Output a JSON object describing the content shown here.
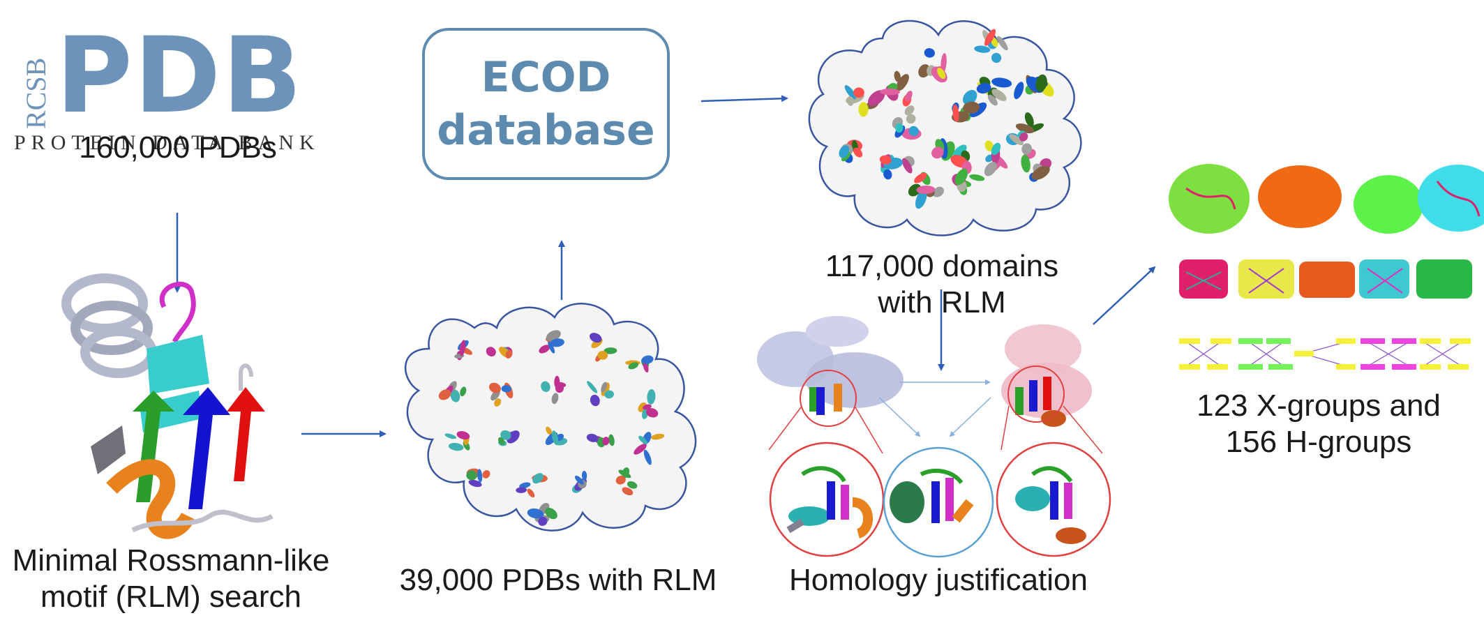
{
  "logo": {
    "rcsb": "RCSB",
    "pdb": "PDB",
    "subtitle": "PROTEIN DATA BANK"
  },
  "nodes": {
    "pdb_count": "160,000 PDBs",
    "ecod_line1": "ECOD",
    "ecod_line2": "database",
    "domains_line1": "117,000 domains",
    "domains_line2": "with RLM",
    "rlm_search_line1": "Minimal Rossmann-like",
    "rlm_search_line2": "motif (RLM) search",
    "pdbs_rlm": "39,000 PDBs with RLM",
    "homology": "Homology justification",
    "groups_line1": "123 X-groups and",
    "groups_line2": "156 H-groups"
  },
  "colors": {
    "arrow": "#2e5fb5",
    "ecod_box": "#5d8bb0",
    "logo": "#6d93ba",
    "cloud_border": "#3a55a0",
    "cloud_fill": "#f4f4f4",
    "zoom_circle_red": "#e04040",
    "zoom_circle_blue": "#5aa0d0",
    "network_colors": [
      "#7ee040",
      "#f06a14",
      "#5cf24a",
      "#40dce8",
      "#e0206a",
      "#e8e84a",
      "#e65a1e",
      "#3ec8cf",
      "#28b848",
      "#f5f03a",
      "#74f25a",
      "#ee44e0",
      "#d060e8"
    ]
  }
}
